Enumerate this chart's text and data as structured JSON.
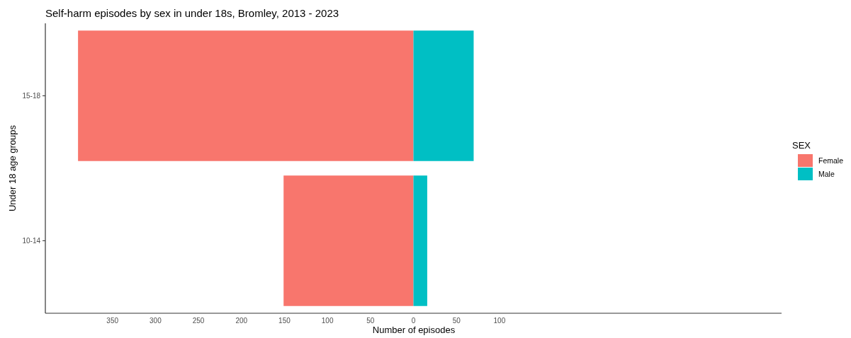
{
  "chart_data": {
    "type": "bar",
    "orientation": "horizontal",
    "stacked": true,
    "title": "Self-harm episodes by sex in under 18s, Bromley, 2013 - 2023",
    "xlabel": "Number of episodes",
    "ylabel": "Under 18 age groups",
    "legend_title": "SEX",
    "legend": "right",
    "grid": false,
    "categories": [
      "15-18",
      "10-14"
    ],
    "series": [
      {
        "name": "Female",
        "color": "#f8766d",
        "values": [
          -390,
          -151
        ]
      },
      {
        "name": "Male",
        "color": "#00bfc4",
        "values": [
          70,
          16
        ]
      }
    ],
    "xlim": [
      -428,
      428
    ],
    "xticks": [
      {
        "value": -350,
        "label": "350"
      },
      {
        "value": -300,
        "label": "300"
      },
      {
        "value": -250,
        "label": "250"
      },
      {
        "value": -200,
        "label": "200"
      },
      {
        "value": -150,
        "label": "150"
      },
      {
        "value": -100,
        "label": "100"
      },
      {
        "value": -50,
        "label": "50"
      },
      0,
      50,
      100
    ]
  }
}
